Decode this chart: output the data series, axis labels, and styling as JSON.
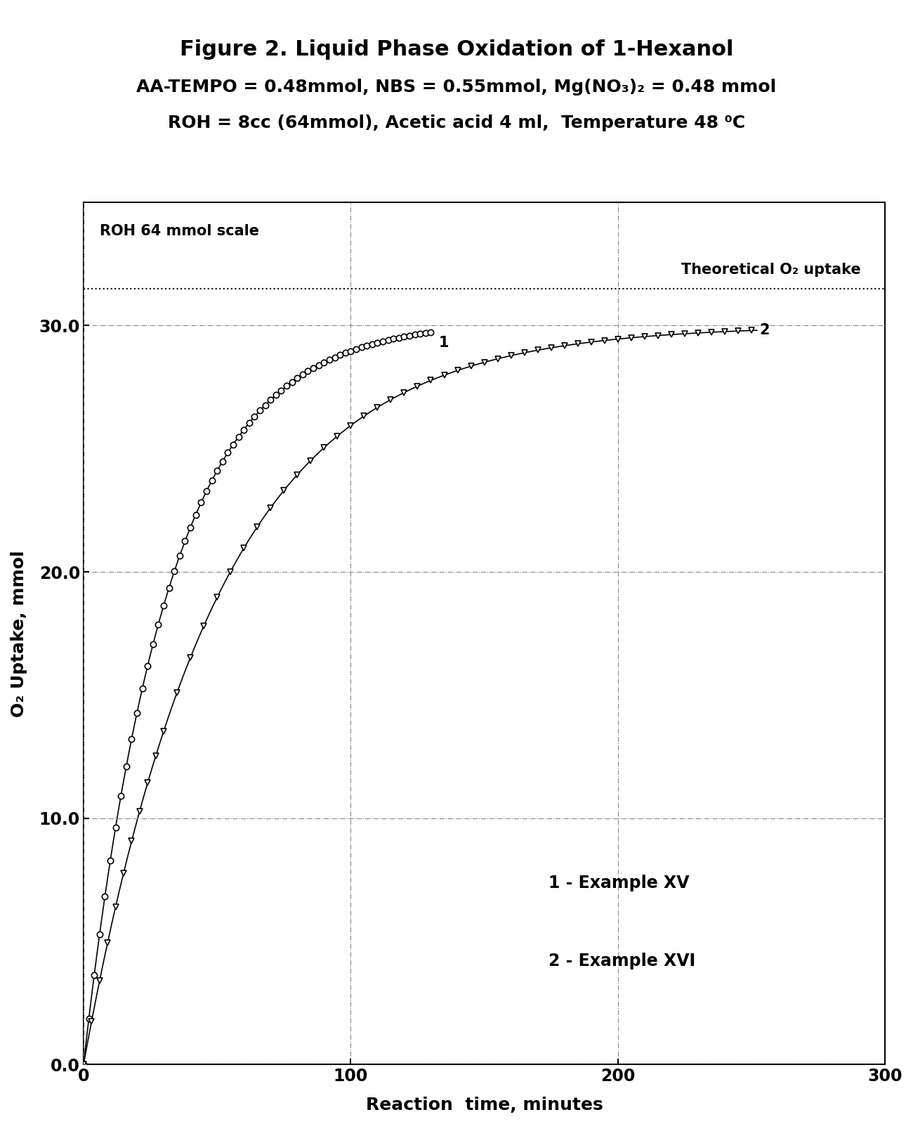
{
  "title_line1": "Figure 2. Liquid Phase Oxidation of 1-Hexanol",
  "title_line2": "AA-TEMPO = 0.48mmol, NBS = 0.55mmol, Mg(NO₃)₂ = 0.48 mmol",
  "title_line3": "ROH = 8cc (64mmol), Acetic acid 4 ml,  Temperature 48 ⁰C",
  "xlabel": "Reaction  time, minutes",
  "ylabel": "O₂ Uptake, mmol",
  "xlim": [
    0,
    300
  ],
  "ylim": [
    0.0,
    35.0
  ],
  "xticks": [
    0,
    100,
    200,
    300
  ],
  "yticks": [
    0.0,
    10.0,
    20.0,
    30.0
  ],
  "theoretical_o2": 31.5,
  "annotation_roh": "ROH 64 mmol scale",
  "annotation_theo": "Theoretical O₂ uptake",
  "legend_1": "1 - Example XV",
  "legend_2": "2 - Example XVI",
  "curve1_label": "1",
  "curve2_label": "2",
  "background_color": "#ffffff",
  "grid_color": "#aaaaaa",
  "curve1_t": [
    0,
    2,
    4,
    6,
    8,
    10,
    12,
    14,
    16,
    18,
    20,
    22,
    24,
    26,
    28,
    30,
    32,
    34,
    36,
    38,
    40,
    42,
    44,
    46,
    48,
    50,
    52,
    54,
    56,
    58,
    60,
    62,
    64,
    66,
    68,
    70,
    72,
    74,
    76,
    78,
    80,
    82,
    84,
    86,
    88,
    90,
    92,
    94,
    96,
    98,
    100,
    102,
    104,
    106,
    108,
    110,
    112,
    114,
    116,
    118,
    120,
    122,
    124,
    126,
    128,
    130
  ],
  "curve2_t": [
    0,
    3,
    6,
    9,
    12,
    15,
    18,
    21,
    24,
    27,
    30,
    35,
    40,
    45,
    50,
    55,
    60,
    65,
    70,
    75,
    80,
    85,
    90,
    95,
    100,
    105,
    110,
    115,
    120,
    125,
    130,
    135,
    140,
    145,
    150,
    155,
    160,
    165,
    170,
    175,
    180,
    185,
    190,
    195,
    200,
    205,
    210,
    215,
    220,
    225,
    230,
    235,
    240,
    245,
    250
  ]
}
